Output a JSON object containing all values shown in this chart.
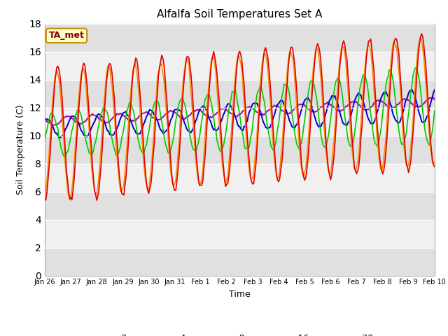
{
  "title": "Alfalfa Soil Temperatures Set A",
  "xlabel": "Time",
  "ylabel": "Soil Temperature (C)",
  "ylim": [
    0,
    18
  ],
  "yticks": [
    0,
    2,
    4,
    6,
    8,
    10,
    12,
    14,
    16,
    18
  ],
  "bg_color": "#ffffff",
  "plot_bg_color": "#ffffff",
  "band_color_light": "#f0f0f0",
  "band_color_dark": "#e0e0e0",
  "colors": {
    "-2cm": "#dd0000",
    "-4cm": "#ff8800",
    "-8cm": "#00cc00",
    "-16cm": "#0000cc",
    "-32cm": "#aa00aa"
  },
  "legend_label": "TA_met",
  "x_labels": [
    "Jan 26",
    "Jan 27",
    "Jan 28",
    "Jan 29",
    "Jan 30",
    "Jan 31",
    "Feb 1",
    "Feb 2",
    "Feb 3",
    "Feb 4",
    "Feb 5",
    "Feb 6",
    "Feb 7",
    "Feb 8",
    "Feb 9",
    "Feb 10"
  ],
  "ta_met_facecolor": "#ffffcc",
  "ta_met_edgecolor": "#cc8800",
  "ta_met_textcolor": "#880000"
}
